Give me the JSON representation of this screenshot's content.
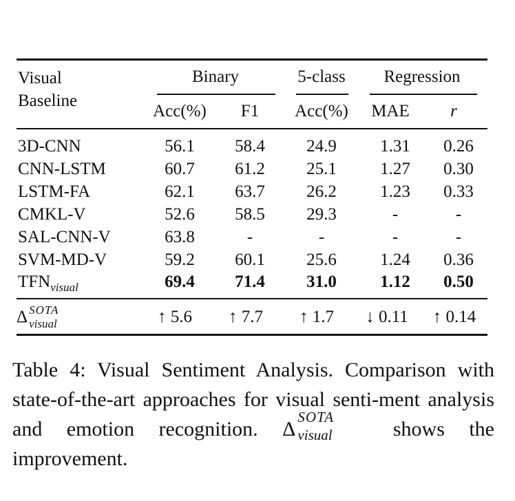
{
  "table": {
    "header": {
      "row_label_line1": "Visual",
      "row_label_line2": "Baseline",
      "group_binary": "Binary",
      "group_5class": "5-class",
      "group_regression": "Regression",
      "col_acc": "Acc(%)",
      "col_f1": "F1",
      "col_acc5": "Acc(%)",
      "col_mae": "MAE",
      "col_r": "r"
    },
    "rows": [
      {
        "name": "3D-CNN",
        "acc": "56.1",
        "f1": "58.4",
        "acc5": "24.9",
        "mae": "1.31",
        "r": "0.26"
      },
      {
        "name": "CNN-LSTM",
        "acc": "60.7",
        "f1": "61.2",
        "acc5": "25.1",
        "mae": "1.27",
        "r": "0.30"
      },
      {
        "name": "LSTM-FA",
        "acc": "62.1",
        "f1": "63.7",
        "acc5": "26.2",
        "mae": "1.23",
        "r": "0.33"
      },
      {
        "name": "CMKL-V",
        "acc": "52.6",
        "f1": "58.5",
        "acc5": "29.3",
        "mae": "-",
        "r": "-"
      },
      {
        "name": "SAL-CNN-V",
        "acc": "63.8",
        "f1": "-",
        "acc5": "-",
        "mae": "-",
        "r": "-"
      },
      {
        "name": "SVM-MD-V",
        "acc": "59.2",
        "f1": "60.1",
        "acc5": "25.6",
        "mae": "1.24",
        "r": "0.36"
      }
    ],
    "tfn_row": {
      "name_base": "TFN",
      "name_sub": "visual",
      "acc": "69.4",
      "f1": "71.4",
      "acc5": "31.0",
      "mae": "1.12",
      "r": "0.50"
    },
    "delta_row": {
      "symbol": "Δ",
      "sup": "SOTA",
      "sub": "visual",
      "acc": "↑ 5.6",
      "f1": "↑ 7.7",
      "acc5": "↑ 1.7",
      "mae": "↓ 0.11",
      "r": "↑ 0.14"
    }
  },
  "caption": {
    "part1": "Table 4: Visual Sentiment Analysis. Comparison with state-of-the-art approaches for visual senti-ment analysis and emotion recognition.",
    "delta_symbol": "Δ",
    "delta_sup": "SOTA",
    "delta_sub": "visual",
    "part2": "shows the improvement."
  }
}
